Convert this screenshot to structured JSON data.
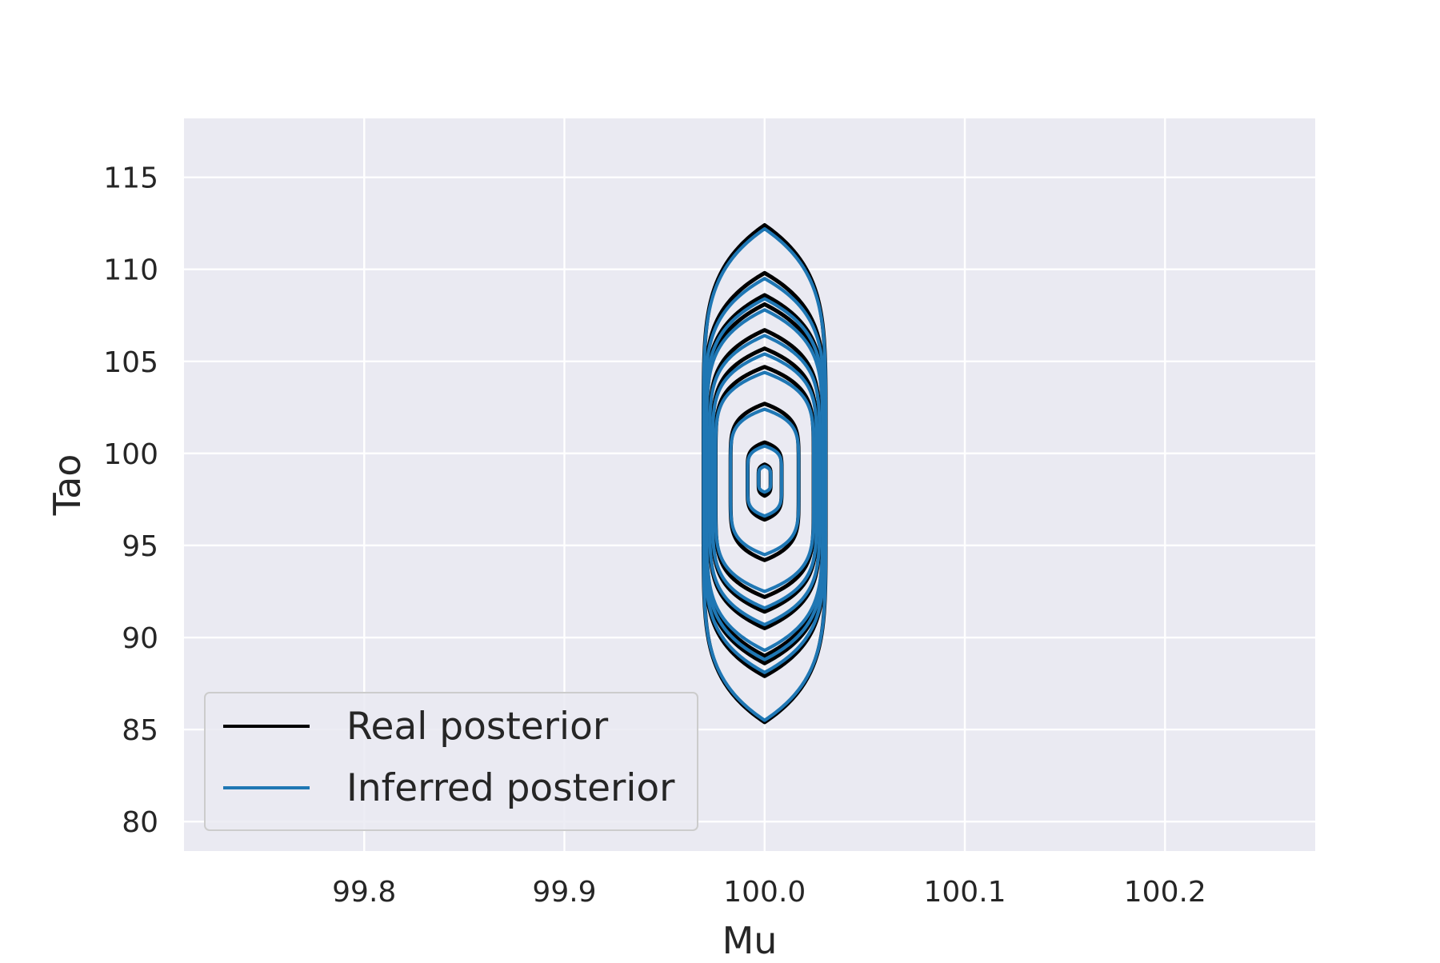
{
  "chart_data": {
    "type": "contour",
    "title": "",
    "xlabel": "Mu",
    "ylabel": "Tao",
    "xlim": [
      99.71,
      100.275
    ],
    "ylim": [
      78.4,
      118.2
    ],
    "x_ticks": [
      99.8,
      99.9,
      100.0,
      100.1,
      100.2
    ],
    "x_tick_labels": [
      "99.8",
      "99.9",
      "100.0",
      "100.1",
      "100.2"
    ],
    "y_ticks": [
      80,
      85,
      90,
      95,
      100,
      105,
      110,
      115
    ],
    "y_tick_labels": [
      "80",
      "85",
      "90",
      "95",
      "100",
      "105",
      "110",
      "115"
    ],
    "grid": true,
    "background": "#eaeaf2",
    "legend_position": "lower-left",
    "series": [
      {
        "name": "Real posterior",
        "color": "#000000",
        "center": [
          100.0,
          98.6
        ],
        "contours": [
          {
            "x_halfwidth": 0.0305,
            "y_top": 112.4,
            "y_bottom": 85.4
          },
          {
            "x_halfwidth": 0.03,
            "y_top": 109.8,
            "y_bottom": 87.9
          },
          {
            "x_halfwidth": 0.0295,
            "y_top": 108.6,
            "y_bottom": 88.6
          },
          {
            "x_halfwidth": 0.029,
            "y_top": 108.1,
            "y_bottom": 89.0
          },
          {
            "x_halfwidth": 0.0275,
            "y_top": 106.7,
            "y_bottom": 90.5
          },
          {
            "x_halfwidth": 0.026,
            "y_top": 105.7,
            "y_bottom": 91.4
          },
          {
            "x_halfwidth": 0.0245,
            "y_top": 104.7,
            "y_bottom": 92.2
          },
          {
            "x_halfwidth": 0.017,
            "y_top": 102.7,
            "y_bottom": 94.2
          },
          {
            "x_halfwidth": 0.0085,
            "y_top": 100.6,
            "y_bottom": 96.4
          },
          {
            "x_halfwidth": 0.003,
            "y_top": 99.4,
            "y_bottom": 97.7
          }
        ]
      },
      {
        "name": "Inferred posterior",
        "color": "#1f77b4",
        "center": [
          100.0,
          98.6
        ],
        "contours": [
          {
            "x_halfwidth": 0.0305,
            "y_top": 112.2,
            "y_bottom": 85.5
          },
          {
            "x_halfwidth": 0.03,
            "y_top": 109.5,
            "y_bottom": 88.1
          },
          {
            "x_halfwidth": 0.0295,
            "y_top": 108.4,
            "y_bottom": 88.8
          },
          {
            "x_halfwidth": 0.029,
            "y_top": 107.8,
            "y_bottom": 89.3
          },
          {
            "x_halfwidth": 0.0275,
            "y_top": 106.4,
            "y_bottom": 90.7
          },
          {
            "x_halfwidth": 0.026,
            "y_top": 105.4,
            "y_bottom": 91.6
          },
          {
            "x_halfwidth": 0.0245,
            "y_top": 104.4,
            "y_bottom": 92.5
          },
          {
            "x_halfwidth": 0.017,
            "y_top": 102.4,
            "y_bottom": 94.5
          },
          {
            "x_halfwidth": 0.0085,
            "y_top": 100.4,
            "y_bottom": 96.6
          },
          {
            "x_halfwidth": 0.003,
            "y_top": 99.3,
            "y_bottom": 97.9
          }
        ]
      }
    ]
  }
}
